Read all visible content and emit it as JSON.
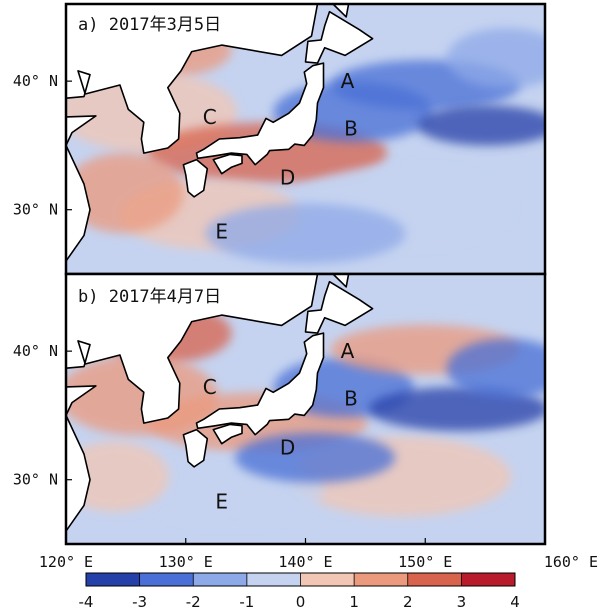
{
  "figure": {
    "panels": [
      {
        "title": "a) 2017年3月5日",
        "regions": [
          {
            "label": "A",
            "lon": 143.5,
            "lat": 40.0
          },
          {
            "label": "B",
            "lon": 143.8,
            "lat": 36.3
          },
          {
            "label": "C",
            "lon": 132.0,
            "lat": 37.2
          },
          {
            "label": "D",
            "lon": 138.5,
            "lat": 32.5
          },
          {
            "label": "E",
            "lon": 133.0,
            "lat": 28.3
          }
        ]
      },
      {
        "title": "b) 2017年4月7日",
        "regions": [
          {
            "label": "A",
            "lon": 143.5,
            "lat": 40.0
          },
          {
            "label": "B",
            "lon": 143.8,
            "lat": 36.3
          },
          {
            "label": "C",
            "lon": 132.0,
            "lat": 37.2
          },
          {
            "label": "D",
            "lon": 138.5,
            "lat": 32.5
          },
          {
            "label": "E",
            "lon": 133.0,
            "lat": 28.3
          }
        ]
      }
    ],
    "lon_range": [
      120,
      160
    ],
    "lat_range": [
      25,
      46
    ],
    "lat_ticks": [
      {
        "value": 30,
        "label": "30° N"
      },
      {
        "value": 40,
        "label": "40° N"
      }
    ],
    "lon_ticks": [
      {
        "value": 120,
        "label": "120° E"
      },
      {
        "value": 130,
        "label": "130° E"
      },
      {
        "value": 140,
        "label": "140° E"
      },
      {
        "value": 150,
        "label": "150° E"
      },
      {
        "value": 160,
        "label": "160° E"
      }
    ],
    "colorbar": {
      "range": [
        -4,
        4
      ],
      "ticks": [
        "-4",
        "-3",
        "-2",
        "-1",
        "0",
        "1",
        "2",
        "3",
        "4"
      ],
      "colors": [
        "#2540a8",
        "#4a6fd6",
        "#8ea9e8",
        "#c5d3f0",
        "#f2c6b4",
        "#eb9a7e",
        "#d8644e",
        "#b81b2c"
      ]
    },
    "colors": {
      "land": "#ffffff",
      "coast": "#000000",
      "background": "#c5d3f0"
    }
  }
}
